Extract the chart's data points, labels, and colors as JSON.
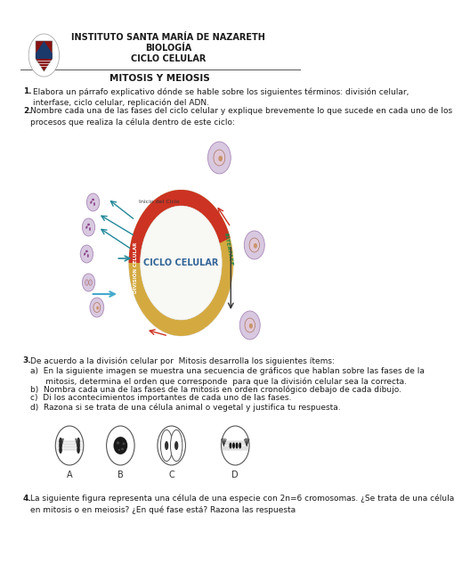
{
  "header_line1": "INSTITUTO SANTA MARÍA DE NAZARETH",
  "header_line2": "BIOLOGÍA",
  "header_line3": "CICLO CELULAR",
  "title": "MITOSIS Y MEIOSIS",
  "q1_num": "1.",
  "q1_body": "Elabora un párrafo explicativo dónde se hable sobre los siguientes términos: división celular,\ninterfase, ciclo celular, replicación del ADN.",
  "q2_num": "2.",
  "q2_body": "Nombre cada una de las fases del ciclo celular y explique brevemente lo que sucede en cada uno de los\nprocesos que realiza la célula dentro de este ciclo:",
  "q3_num": "3.",
  "q3_body": "De acuerdo a la división celular por  Mitosis desarrolla los siguientes ítems:",
  "q3a": "a)  En la siguiente imagen se muestra una secuencia de gráficos que hablan sobre las fases de la\n      mitosis, determina el orden que corresponde  para que la división celular sea la correcta.",
  "q3b": "b)  Nombra cada una de las fases de la mitosis en orden cronológico debajo de cada dibujo.",
  "q3c": "c)  Di los acontecimientos importantes de cada uno de las fases.",
  "q3d": "d)  Razona si se trata de una célula animal o vegetal y justifica tu respuesta.",
  "q4_num": "4.",
  "q4_body": "La siguiente figura representa una célula de una especie con 2n=6 cromosomas. ¿Se trata de una célula\nen mitosis o en meiosis? ¿En qué fase está? Razona las respuesta",
  "ciclo_label": "CICLO CELULAR",
  "interfase_label": "INTERFASE",
  "division_label": "DIVISIÓN CELULAR",
  "inicio_label": "Inicio del Ciclo",
  "phase_labels": [
    "A",
    "B",
    "C",
    "D"
  ],
  "bg_color": "#ffffff",
  "text_color": "#1a1a1a",
  "cell_purple_light": "#d8c8e0",
  "cell_purple_border": "#a888b8",
  "nucleus_brown": "#c8956a",
  "nucleus_border": "#a06040",
  "ring_gold": "#d4aa40",
  "ring_red": "#cc3322",
  "ring_inner_bg": "#eeeeee",
  "ciclo_text_color": "#336699",
  "interfase_color": "#228844",
  "division_color": "#335588",
  "arrow_teal": "#228899",
  "arrow_blue_light": "#44aacc",
  "arrow_red": "#cc3322",
  "arrow_black": "#333333",
  "font_size_header": 7.0,
  "font_size_title": 7.5,
  "font_size_body": 6.5,
  "font_size_diagram": 6.0,
  "font_size_label": 5.0
}
